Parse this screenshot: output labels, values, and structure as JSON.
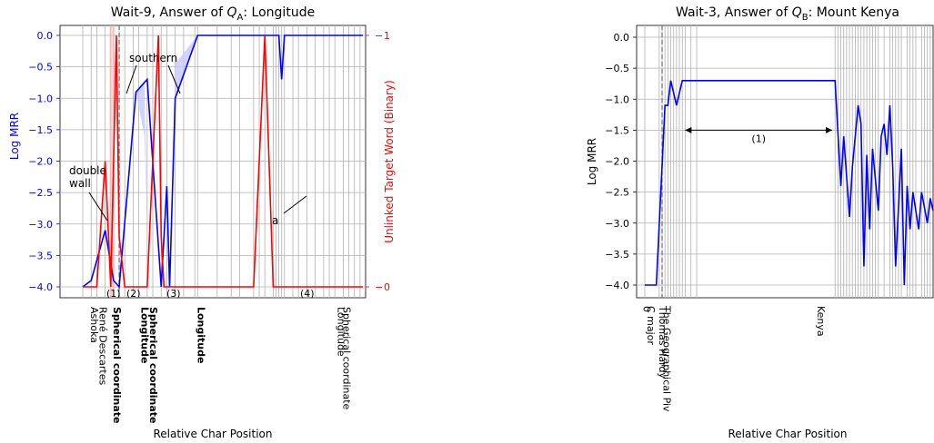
{
  "chart_data": [
    {
      "type": "line",
      "title": "Wait-9, Answer of Q_A: Longitude",
      "title_parts": [
        "Wait-9, Answer of ",
        "Q",
        "A",
        ": Longitude"
      ],
      "xlabel": "Relative Char Position",
      "ylabel": "Log MRR",
      "ylabel_right": "Unlinked Target Word (Binary)",
      "ylim": [
        -4.0,
        0.0
      ],
      "yticks": [
        "0.0",
        "−0.5",
        "−1.0",
        "−1.5",
        "−2.0",
        "−2.5",
        "−3.0",
        "−3.5",
        "−4.0"
      ],
      "yticks_right": [
        "1",
        "0"
      ],
      "xtick_labels": [
        "René Descartes",
        "Ashoka",
        "Spherical coordinate",
        "Spherical coordinate",
        "Longitude",
        "Longitude",
        "Longitude",
        "Spherical coordinate"
      ],
      "series": [
        {
          "axis": "left",
          "x": [
            0.0,
            0.03,
            0.08,
            0.11,
            0.13,
            0.19,
            0.23,
            0.28,
            0.3,
            0.31,
            0.33,
            0.41,
            0.7,
            0.71,
            0.72,
            1.0
          ],
          "y": [
            -4.0,
            -3.9,
            -3.1,
            -3.9,
            -4.0,
            -0.9,
            -0.7,
            -4.0,
            -2.4,
            -4.0,
            -1.0,
            0.0,
            0.0,
            -0.7,
            0.0,
            0.0
          ]
        },
        {
          "axis": "right",
          "x": [
            0.0,
            0.05,
            0.08,
            0.1,
            0.12,
            0.13,
            0.15,
            0.23,
            0.27,
            0.28,
            0.29,
            0.61,
            0.65,
            0.68,
            1.0
          ],
          "y": [
            0,
            0,
            0.5,
            0,
            1,
            0.2,
            0,
            0,
            1,
            0.2,
            0,
            0,
            1,
            0,
            0
          ]
        }
      ],
      "annotations": [
        "southern",
        "double\nwall",
        "a",
        "(1)",
        "(2)",
        "(3)",
        "(4)"
      ]
    },
    {
      "type": "line",
      "title": "Wait-3, Answer of Q_B: Mount Kenya",
      "title_parts": [
        "Wait-3, Answer of ",
        "Q",
        "B",
        ": Mount Kenya"
      ],
      "xlabel": "Relative Char Position",
      "ylabel": "Log MRR",
      "ylim": [
        -4.0,
        0.0
      ],
      "yticks": [
        "0.0",
        "−0.5",
        "−1.0",
        "−1.5",
        "−2.0",
        "−2.5",
        "−3.0",
        "−3.5",
        "−4.0"
      ],
      "xtick_labels": [
        "0",
        "C major",
        "The Geographical Piv",
        "Thomas Hardy",
        "Kenya"
      ],
      "series": [
        {
          "axis": "left",
          "x": [
            0.0,
            0.04,
            0.07,
            0.08,
            0.09,
            0.11,
            0.13,
            0.66,
            0.68,
            0.69,
            0.71,
            0.72,
            0.74,
            0.75,
            0.76,
            0.77,
            0.78,
            0.79,
            0.81,
            0.82,
            0.83,
            0.84,
            0.85,
            0.86,
            0.87,
            0.89,
            0.9,
            0.91,
            0.92,
            0.93,
            0.95,
            0.96,
            0.98,
            0.99,
            1.0
          ],
          "y": [
            -4.0,
            -4.0,
            -1.1,
            -1.1,
            -0.7,
            -1.1,
            -0.7,
            -0.7,
            -2.4,
            -1.6,
            -2.9,
            -2.1,
            -1.1,
            -1.4,
            -3.7,
            -1.9,
            -3.1,
            -1.8,
            -2.8,
            -1.6,
            -1.4,
            -1.9,
            -1.1,
            -2.1,
            -3.7,
            -1.8,
            -4.0,
            -2.4,
            -3.1,
            -2.5,
            -3.1,
            -2.5,
            -3.0,
            -2.6,
            -2.8
          ]
        }
      ],
      "annotations": [
        "(1)"
      ]
    }
  ]
}
